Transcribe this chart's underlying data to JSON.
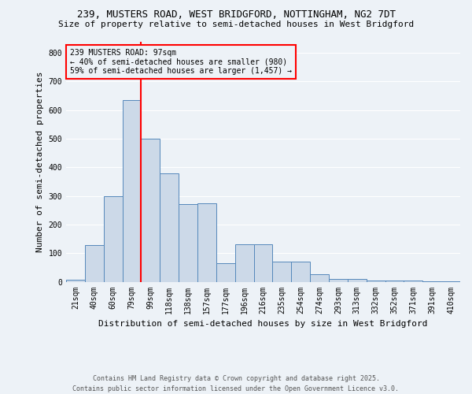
{
  "title1": "239, MUSTERS ROAD, WEST BRIDGFORD, NOTTINGHAM, NG2 7DT",
  "title2": "Size of property relative to semi-detached houses in West Bridgford",
  "xlabel": "Distribution of semi-detached houses by size in West Bridgford",
  "ylabel": "Number of semi-detached properties",
  "bar_labels": [
    "21sqm",
    "40sqm",
    "60sqm",
    "79sqm",
    "99sqm",
    "118sqm",
    "138sqm",
    "157sqm",
    "177sqm",
    "196sqm",
    "216sqm",
    "235sqm",
    "254sqm",
    "274sqm",
    "293sqm",
    "313sqm",
    "332sqm",
    "352sqm",
    "371sqm",
    "391sqm",
    "410sqm"
  ],
  "bar_values": [
    8,
    128,
    300,
    635,
    500,
    380,
    270,
    275,
    65,
    130,
    130,
    70,
    70,
    25,
    10,
    10,
    5,
    4,
    3,
    2,
    2
  ],
  "bar_color": "#ccd9e8",
  "bar_edge_color": "#5588bb",
  "vline_color": "red",
  "vline_pos": 3.5,
  "annotation_title": "239 MUSTERS ROAD: 97sqm",
  "annotation_line1": "← 40% of semi-detached houses are smaller (980)",
  "annotation_line2": "59% of semi-detached houses are larger (1,457) →",
  "annotation_box_color": "red",
  "ylim": [
    0,
    840
  ],
  "yticks": [
    0,
    100,
    200,
    300,
    400,
    500,
    600,
    700,
    800
  ],
  "footer1": "Contains HM Land Registry data © Crown copyright and database right 2025.",
  "footer2": "Contains public sector information licensed under the Open Government Licence v3.0.",
  "bg_color": "#edf2f7",
  "plot_bg_color": "#edf2f7",
  "grid_color": "#ffffff",
  "title_fontsize": 9,
  "subtitle_fontsize": 8,
  "tick_fontsize": 7,
  "ylabel_fontsize": 8,
  "xlabel_fontsize": 8,
  "footer_fontsize": 6,
  "annot_fontsize": 7
}
